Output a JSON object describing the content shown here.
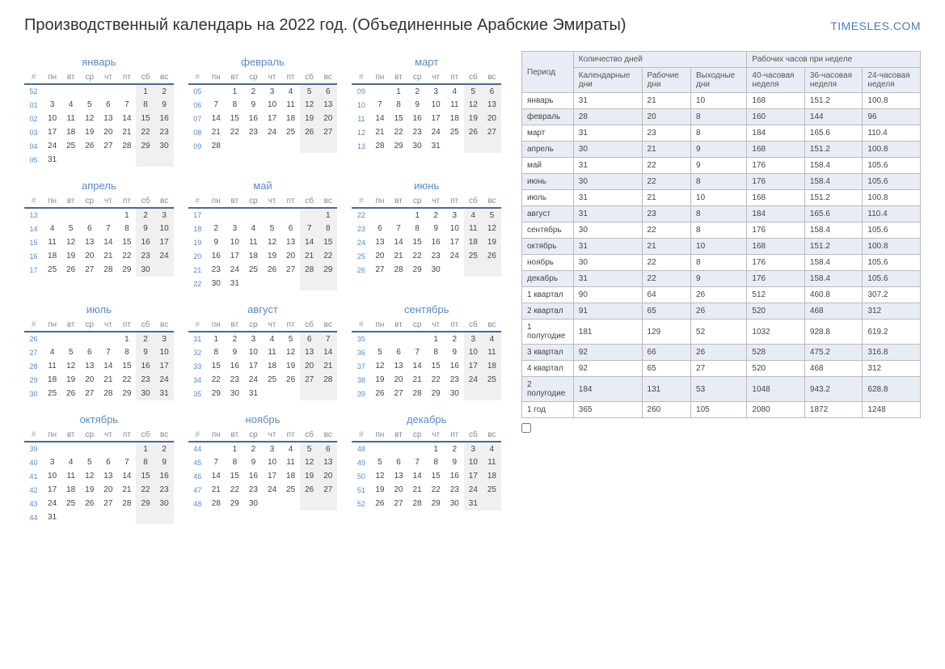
{
  "header": {
    "title": "Производственный календарь на 2022 год. (Объединенные Арабские Эмираты)",
    "brand": "TIMESLES.COM"
  },
  "colors": {
    "accent": "#5a8bc5",
    "border": "#4a6a8a",
    "weekend_bg": "#f0f0f0",
    "alt_row": "#e8ecf5",
    "table_border": "#bbbbbb"
  },
  "weekdays": [
    "#",
    "пн",
    "вт",
    "ср",
    "чт",
    "пт",
    "сб",
    "вс"
  ],
  "months": [
    {
      "name": "январь",
      "weeks": [
        [
          "52",
          "",
          "",
          "",
          "",
          "",
          "1",
          "2"
        ],
        [
          "01",
          "3",
          "4",
          "5",
          "6",
          "7",
          "8",
          "9"
        ],
        [
          "02",
          "10",
          "11",
          "12",
          "13",
          "14",
          "15",
          "16"
        ],
        [
          "03",
          "17",
          "18",
          "19",
          "20",
          "21",
          "22",
          "23"
        ],
        [
          "04",
          "24",
          "25",
          "26",
          "27",
          "28",
          "29",
          "30"
        ],
        [
          "05",
          "31",
          "",
          "",
          "",
          "",
          "",
          ""
        ]
      ]
    },
    {
      "name": "февраль",
      "weeks": [
        [
          "05",
          "",
          "1",
          "2",
          "3",
          "4",
          "5",
          "6"
        ],
        [
          "06",
          "7",
          "8",
          "9",
          "10",
          "11",
          "12",
          "13"
        ],
        [
          "07",
          "14",
          "15",
          "16",
          "17",
          "18",
          "19",
          "20"
        ],
        [
          "08",
          "21",
          "22",
          "23",
          "24",
          "25",
          "26",
          "27"
        ],
        [
          "09",
          "28",
          "",
          "",
          "",
          "",
          "",
          ""
        ]
      ]
    },
    {
      "name": "март",
      "weeks": [
        [
          "09",
          "",
          "1",
          "2",
          "3",
          "4",
          "5",
          "6"
        ],
        [
          "10",
          "7",
          "8",
          "9",
          "10",
          "11",
          "12",
          "13"
        ],
        [
          "11",
          "14",
          "15",
          "16",
          "17",
          "18",
          "19",
          "20"
        ],
        [
          "12",
          "21",
          "22",
          "23",
          "24",
          "25",
          "26",
          "27"
        ],
        [
          "13",
          "28",
          "29",
          "30",
          "31",
          "",
          "",
          ""
        ]
      ]
    },
    {
      "name": "апрель",
      "weeks": [
        [
          "13",
          "",
          "",
          "",
          "",
          "1",
          "2",
          "3"
        ],
        [
          "14",
          "4",
          "5",
          "6",
          "7",
          "8",
          "9",
          "10"
        ],
        [
          "15",
          "11",
          "12",
          "13",
          "14",
          "15",
          "16",
          "17"
        ],
        [
          "16",
          "18",
          "19",
          "20",
          "21",
          "22",
          "23",
          "24"
        ],
        [
          "17",
          "25",
          "26",
          "27",
          "28",
          "29",
          "30",
          ""
        ]
      ]
    },
    {
      "name": "май",
      "weeks": [
        [
          "17",
          "",
          "",
          "",
          "",
          "",
          "",
          "1"
        ],
        [
          "18",
          "2",
          "3",
          "4",
          "5",
          "6",
          "7",
          "8"
        ],
        [
          "19",
          "9",
          "10",
          "11",
          "12",
          "13",
          "14",
          "15"
        ],
        [
          "20",
          "16",
          "17",
          "18",
          "19",
          "20",
          "21",
          "22"
        ],
        [
          "21",
          "23",
          "24",
          "25",
          "26",
          "27",
          "28",
          "29"
        ],
        [
          "22",
          "30",
          "31",
          "",
          "",
          "",
          "",
          ""
        ]
      ]
    },
    {
      "name": "июнь",
      "weeks": [
        [
          "22",
          "",
          "",
          "1",
          "2",
          "3",
          "4",
          "5"
        ],
        [
          "23",
          "6",
          "7",
          "8",
          "9",
          "10",
          "11",
          "12"
        ],
        [
          "24",
          "13",
          "14",
          "15",
          "16",
          "17",
          "18",
          "19"
        ],
        [
          "25",
          "20",
          "21",
          "22",
          "23",
          "24",
          "25",
          "26"
        ],
        [
          "26",
          "27",
          "28",
          "29",
          "30",
          "",
          "",
          ""
        ]
      ]
    },
    {
      "name": "июль",
      "weeks": [
        [
          "26",
          "",
          "",
          "",
          "",
          "1",
          "2",
          "3"
        ],
        [
          "27",
          "4",
          "5",
          "6",
          "7",
          "8",
          "9",
          "10"
        ],
        [
          "28",
          "11",
          "12",
          "13",
          "14",
          "15",
          "16",
          "17"
        ],
        [
          "29",
          "18",
          "19",
          "20",
          "21",
          "22",
          "23",
          "24"
        ],
        [
          "30",
          "25",
          "26",
          "27",
          "28",
          "29",
          "30",
          "31"
        ]
      ]
    },
    {
      "name": "август",
      "weeks": [
        [
          "31",
          "1",
          "2",
          "3",
          "4",
          "5",
          "6",
          "7"
        ],
        [
          "32",
          "8",
          "9",
          "10",
          "11",
          "12",
          "13",
          "14"
        ],
        [
          "33",
          "15",
          "16",
          "17",
          "18",
          "19",
          "20",
          "21"
        ],
        [
          "34",
          "22",
          "23",
          "24",
          "25",
          "26",
          "27",
          "28"
        ],
        [
          "35",
          "29",
          "30",
          "31",
          "",
          "",
          "",
          ""
        ]
      ]
    },
    {
      "name": "сентябрь",
      "weeks": [
        [
          "35",
          "",
          "",
          "",
          "1",
          "2",
          "3",
          "4"
        ],
        [
          "36",
          "5",
          "6",
          "7",
          "8",
          "9",
          "10",
          "11"
        ],
        [
          "37",
          "12",
          "13",
          "14",
          "15",
          "16",
          "17",
          "18"
        ],
        [
          "38",
          "19",
          "20",
          "21",
          "22",
          "23",
          "24",
          "25"
        ],
        [
          "39",
          "26",
          "27",
          "28",
          "29",
          "30",
          "",
          ""
        ]
      ]
    },
    {
      "name": "октябрь",
      "weeks": [
        [
          "39",
          "",
          "",
          "",
          "",
          "",
          "1",
          "2"
        ],
        [
          "40",
          "3",
          "4",
          "5",
          "6",
          "7",
          "8",
          "9"
        ],
        [
          "41",
          "10",
          "11",
          "12",
          "13",
          "14",
          "15",
          "16"
        ],
        [
          "42",
          "17",
          "18",
          "19",
          "20",
          "21",
          "22",
          "23"
        ],
        [
          "43",
          "24",
          "25",
          "26",
          "27",
          "28",
          "29",
          "30"
        ],
        [
          "44",
          "31",
          "",
          "",
          "",
          "",
          "",
          ""
        ]
      ]
    },
    {
      "name": "ноябрь",
      "weeks": [
        [
          "44",
          "",
          "1",
          "2",
          "3",
          "4",
          "5",
          "6"
        ],
        [
          "45",
          "7",
          "8",
          "9",
          "10",
          "11",
          "12",
          "13"
        ],
        [
          "46",
          "14",
          "15",
          "16",
          "17",
          "18",
          "19",
          "20"
        ],
        [
          "47",
          "21",
          "22",
          "23",
          "24",
          "25",
          "26",
          "27"
        ],
        [
          "48",
          "28",
          "29",
          "30",
          "",
          "",
          "",
          ""
        ]
      ]
    },
    {
      "name": "декабрь",
      "weeks": [
        [
          "48",
          "",
          "",
          "",
          "1",
          "2",
          "3",
          "4"
        ],
        [
          "49",
          "5",
          "6",
          "7",
          "8",
          "9",
          "10",
          "11"
        ],
        [
          "50",
          "12",
          "13",
          "14",
          "15",
          "16",
          "17",
          "18"
        ],
        [
          "51",
          "19",
          "20",
          "21",
          "22",
          "23",
          "24",
          "25"
        ],
        [
          "52",
          "26",
          "27",
          "28",
          "29",
          "30",
          "31",
          ""
        ]
      ]
    }
  ],
  "stats": {
    "header_groups": [
      {
        "label": "Период",
        "span": 1,
        "rowspan": 2
      },
      {
        "label": "Количество дней",
        "span": 3,
        "rowspan": 1
      },
      {
        "label": "Рабочих часов при неделе",
        "span": 3,
        "rowspan": 1
      }
    ],
    "sub_headers": [
      "Календарные дни",
      "Рабочие дни",
      "Выходные дни",
      "40-часовая неделя",
      "36-часовая неделя",
      "24-часовая неделя"
    ],
    "rows": [
      {
        "alt": false,
        "cells": [
          "январь",
          "31",
          "21",
          "10",
          "168",
          "151.2",
          "100.8"
        ]
      },
      {
        "alt": true,
        "cells": [
          "февраль",
          "28",
          "20",
          "8",
          "160",
          "144",
          "96"
        ]
      },
      {
        "alt": false,
        "cells": [
          "март",
          "31",
          "23",
          "8",
          "184",
          "165.6",
          "110.4"
        ]
      },
      {
        "alt": true,
        "cells": [
          "апрель",
          "30",
          "21",
          "9",
          "168",
          "151.2",
          "100.8"
        ]
      },
      {
        "alt": false,
        "cells": [
          "май",
          "31",
          "22",
          "9",
          "176",
          "158.4",
          "105.6"
        ]
      },
      {
        "alt": true,
        "cells": [
          "июнь",
          "30",
          "22",
          "8",
          "176",
          "158.4",
          "105.6"
        ]
      },
      {
        "alt": false,
        "cells": [
          "июль",
          "31",
          "21",
          "10",
          "168",
          "151.2",
          "100.8"
        ]
      },
      {
        "alt": true,
        "cells": [
          "август",
          "31",
          "23",
          "8",
          "184",
          "165.6",
          "110.4"
        ]
      },
      {
        "alt": false,
        "cells": [
          "сентябрь",
          "30",
          "22",
          "8",
          "176",
          "158.4",
          "105.6"
        ]
      },
      {
        "alt": true,
        "cells": [
          "октябрь",
          "31",
          "21",
          "10",
          "168",
          "151.2",
          "100.8"
        ]
      },
      {
        "alt": false,
        "cells": [
          "ноябрь",
          "30",
          "22",
          "8",
          "176",
          "158.4",
          "105.6"
        ]
      },
      {
        "alt": true,
        "cells": [
          "декабрь",
          "31",
          "22",
          "9",
          "176",
          "158.4",
          "105.6"
        ]
      },
      {
        "alt": false,
        "cells": [
          "1 квартал",
          "90",
          "64",
          "26",
          "512",
          "460.8",
          "307.2"
        ]
      },
      {
        "alt": true,
        "cells": [
          "2 квартал",
          "91",
          "65",
          "26",
          "520",
          "468",
          "312"
        ]
      },
      {
        "alt": false,
        "cells": [
          "1 полугодие",
          "181",
          "129",
          "52",
          "1032",
          "928.8",
          "619.2"
        ]
      },
      {
        "alt": true,
        "cells": [
          "3 квартал",
          "92",
          "66",
          "26",
          "528",
          "475.2",
          "316.8"
        ]
      },
      {
        "alt": false,
        "cells": [
          "4 квартал",
          "92",
          "65",
          "27",
          "520",
          "468",
          "312"
        ]
      },
      {
        "alt": true,
        "cells": [
          "2 полугодие",
          "184",
          "131",
          "53",
          "1048",
          "943.2",
          "628.8"
        ]
      },
      {
        "alt": false,
        "cells": [
          "1 год",
          "365",
          "260",
          "105",
          "2080",
          "1872",
          "1248"
        ]
      }
    ]
  }
}
